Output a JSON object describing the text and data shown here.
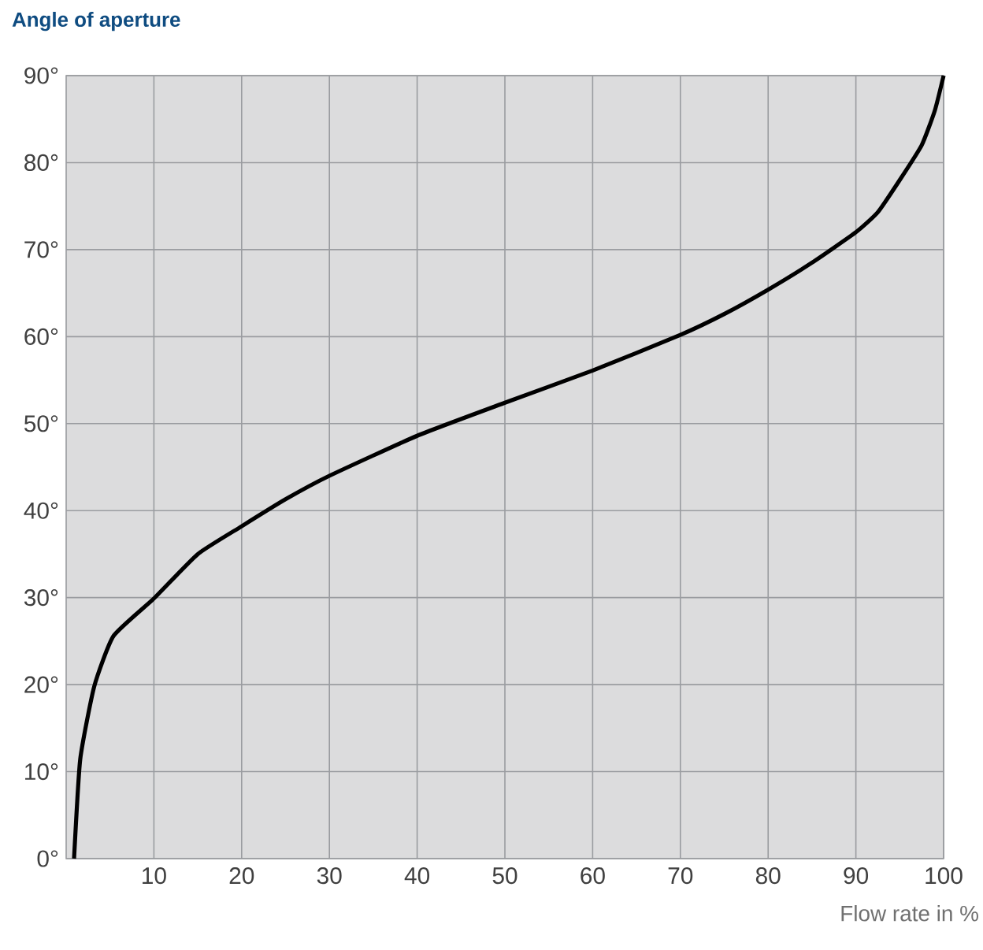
{
  "chart_data": {
    "type": "line",
    "title": "Angle of aperture",
    "xlabel": "Flow rate in %",
    "x": [
      0.9,
      1.6,
      3.2,
      5.4,
      10,
      15,
      20,
      25,
      30,
      40,
      50,
      60,
      70,
      75,
      80,
      85,
      90,
      92.5,
      95,
      97.5,
      99,
      100
    ],
    "series": [
      {
        "color": "#000000",
        "values": [
          0,
          11.4,
          19.8,
          25.6,
          29.9,
          35,
          38.2,
          41.3,
          44,
          48.6,
          52.4,
          56.1,
          60.2,
          62.6,
          65.4,
          68.5,
          72,
          74.3,
          78,
          82,
          86,
          90
        ]
      }
    ],
    "xlim": [
      0,
      100
    ],
    "ylim": [
      0,
      90
    ],
    "xticks": [
      10,
      20,
      30,
      40,
      50,
      60,
      70,
      80,
      90,
      100
    ],
    "yticks": [
      {
        "value": 0,
        "label": "0°"
      },
      {
        "value": 10,
        "label": "10°"
      },
      {
        "value": 20,
        "label": "20°"
      },
      {
        "value": 30,
        "label": "30°"
      },
      {
        "value": 40,
        "label": "40°"
      },
      {
        "value": 50,
        "label": "50°"
      },
      {
        "value": 60,
        "label": "60°"
      },
      {
        "value": 70,
        "label": "70°"
      },
      {
        "value": 80,
        "label": "80°"
      },
      {
        "value": 90,
        "label": "90°"
      }
    ],
    "grid": true,
    "marker": "none",
    "line_style": "solid"
  }
}
